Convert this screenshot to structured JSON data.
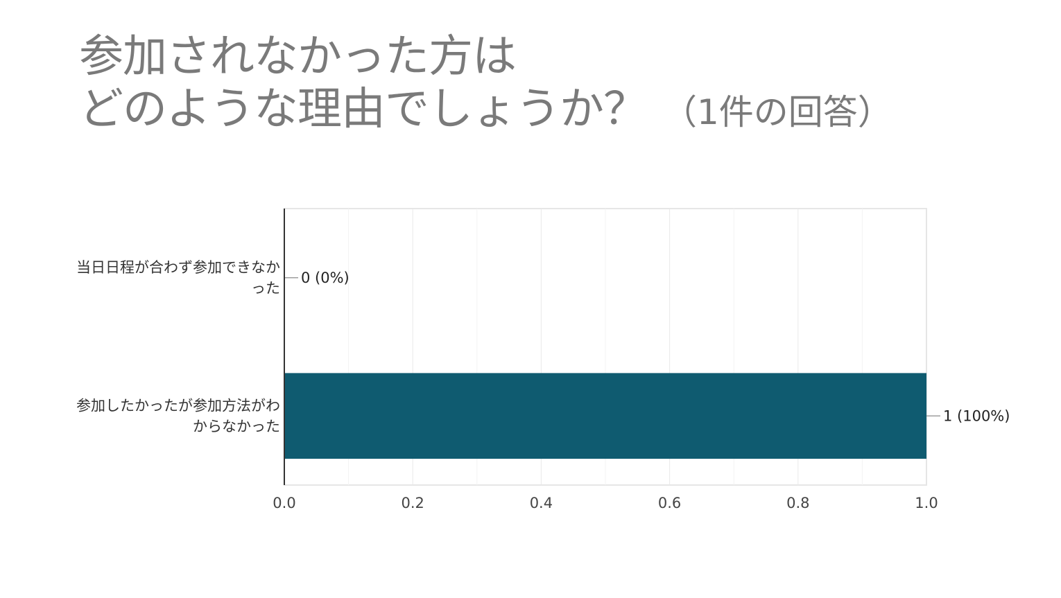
{
  "title": {
    "line1": "参加されなかった方は",
    "line2": "どのような理由でしょうか？",
    "count": "（1件の回答）"
  },
  "chart_data": {
    "type": "bar",
    "orientation": "horizontal",
    "categories": [
      [
        "当日日程が合わず参加できなか",
        "った"
      ],
      [
        "参加したかったが参加方法がわ",
        "からなかった"
      ]
    ],
    "values": [
      0,
      1
    ],
    "data_labels": [
      "0 (0%)",
      "1 (100%)"
    ],
    "xlim": [
      0,
      1.0
    ],
    "xticks": [
      "0.0",
      "0.2",
      "0.4",
      "0.6",
      "0.8",
      "1.0"
    ],
    "grid": true,
    "bar_color": "#0f5b70"
  }
}
